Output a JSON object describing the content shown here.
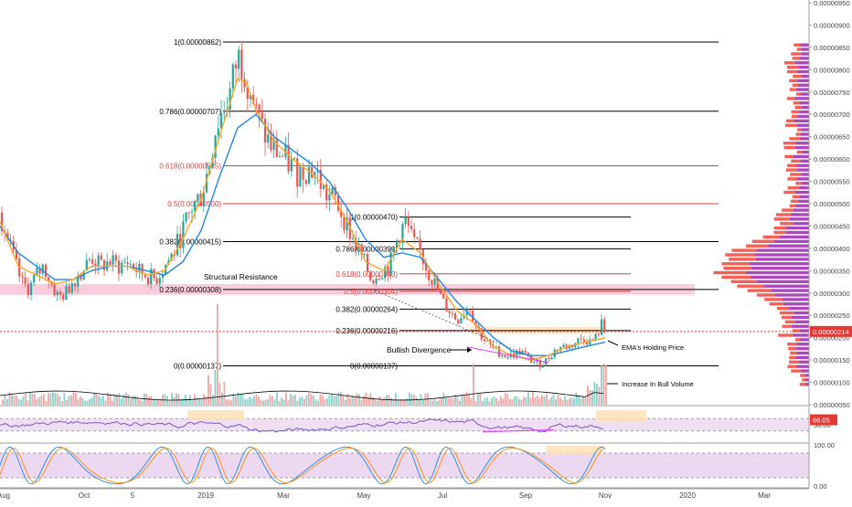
{
  "chart_data": [
    {
      "type": "candlestick",
      "pane": "price",
      "x_ticks": [
        "Aug",
        "Oct",
        "5",
        "2019",
        "Mar",
        "May",
        "Jul",
        "Sep",
        "Nov",
        "2020",
        "Mar"
      ],
      "y_ticks": [
        "0.00000950",
        "0.00000900",
        "0.00000850",
        "0.00000800",
        "0.00000750",
        "0.00000700",
        "0.00000650",
        "0.00000600",
        "0.00000550",
        "0.00000500",
        "0.00000450",
        "0.00000400",
        "0.00000350",
        "0.00000300",
        "0.00000250",
        "0.00000200",
        "0.00000150",
        "0.00000100",
        "0.00000050"
      ],
      "ylim": [
        3e-07,
        9.65e-06
      ],
      "last_price_label": "0.00000214",
      "last_price": 2.14e-06,
      "fib_levels_major": [
        {
          "label": "1(0.00000862)",
          "value": 8.62e-06,
          "color": "#000000"
        },
        {
          "label": "0.786(0.00000707)",
          "value": 7.07e-06,
          "color": "#000000"
        },
        {
          "label": "0.618(0.00000585)",
          "value": 5.85e-06,
          "color": "#e53935"
        },
        {
          "label": "0.5(0.00000500)",
          "value": 5e-06,
          "color": "#e53935"
        },
        {
          "label": "0.382(0.00000415)",
          "value": 4.15e-06,
          "color": "#000000"
        },
        {
          "label": "0.236(0.00000308)",
          "value": 3.08e-06,
          "color": "#000000"
        },
        {
          "label": "0(0.00000137)",
          "value": 1.37e-06,
          "color": "#000000"
        }
      ],
      "fib_levels_minor": [
        {
          "label": "1(0.00000470)",
          "value": 4.7e-06,
          "color": "#000000"
        },
        {
          "label": "0.786(0.00000399)",
          "value": 3.99e-06,
          "color": "#000000"
        },
        {
          "label": "0.618(0.00000343)",
          "value": 3.43e-06,
          "color": "#e53935"
        },
        {
          "label": "0.5(0.00000304)",
          "value": 3.04e-06,
          "color": "#e53935"
        },
        {
          "label": "0.382(0.00000264)",
          "value": 2.64e-06,
          "color": "#000000"
        },
        {
          "label": "0.236(0.00000216)",
          "value": 2.16e-06,
          "color": "#000000"
        },
        {
          "label": "0(0.00000137)",
          "value": 1.37e-06,
          "color": "#000000"
        }
      ],
      "annotations": [
        {
          "text": "Structural Resistance"
        },
        {
          "text": "Bullish Divergence"
        },
        {
          "text": "EMA's Holding Price"
        },
        {
          "text": "Increase In Bull Volume"
        }
      ],
      "price_path": [
        [
          0,
          4.8e-06
        ],
        [
          8,
          4.2e-06
        ],
        [
          16,
          3.7e-06
        ],
        [
          24,
          3.2e-06
        ],
        [
          32,
          3.1e-06
        ],
        [
          40,
          3.4e-06
        ],
        [
          48,
          3.6e-06
        ],
        [
          56,
          3.2e-06
        ],
        [
          64,
          2.9e-06
        ],
        [
          72,
          3e-06
        ],
        [
          80,
          3.3e-06
        ],
        [
          90,
          3.5e-06
        ],
        [
          100,
          3.8e-06
        ],
        [
          110,
          3.6e-06
        ],
        [
          120,
          3.7e-06
        ],
        [
          130,
          3.6e-06
        ],
        [
          140,
          3.7e-06
        ],
        [
          150,
          3.5e-06
        ],
        [
          160,
          3.4e-06
        ],
        [
          170,
          3.3e-06
        ],
        [
          180,
          3.6e-06
        ],
        [
          190,
          3.9e-06
        ],
        [
          200,
          4.4e-06
        ],
        [
          210,
          4.9e-06
        ],
        [
          220,
          5.2e-06
        ],
        [
          228,
          5.8e-06
        ],
        [
          236,
          6.7e-06
        ],
        [
          244,
          7.1e-06
        ],
        [
          252,
          7.5e-06
        ],
        [
          258,
          8.1e-06
        ],
        [
          262,
          8.3e-06
        ],
        [
          268,
          8e-06
        ],
        [
          274,
          7.6e-06
        ],
        [
          280,
          7e-06
        ],
        [
          288,
          6.6e-06
        ],
        [
          296,
          6.3e-06
        ],
        [
          306,
          6.1e-06
        ],
        [
          316,
          5.9e-06
        ],
        [
          326,
          5.7e-06
        ],
        [
          336,
          5.8e-06
        ],
        [
          346,
          5.7e-06
        ],
        [
          356,
          5.2e-06
        ],
        [
          366,
          5.1e-06
        ],
        [
          376,
          4.7e-06
        ],
        [
          386,
          4.2e-06
        ],
        [
          396,
          3.8e-06
        ],
        [
          406,
          3.3e-06
        ],
        [
          416,
          3.5e-06
        ],
        [
          426,
          3.6e-06
        ],
        [
          436,
          4.3e-06
        ],
        [
          444,
          4.6e-06
        ],
        [
          452,
          4.1e-06
        ],
        [
          460,
          3.9e-06
        ],
        [
          468,
          3.5e-06
        ],
        [
          476,
          3.2e-06
        ],
        [
          484,
          2.8e-06
        ],
        [
          492,
          2.6e-06
        ],
        [
          500,
          2.4e-06
        ],
        [
          508,
          2.6e-06
        ],
        [
          514,
          2.7e-06
        ],
        [
          520,
          2.3e-06
        ],
        [
          528,
          2e-06
        ],
        [
          536,
          1.8e-06
        ],
        [
          544,
          1.7e-06
        ],
        [
          552,
          1.6e-06
        ],
        [
          560,
          1.6e-06
        ],
        [
          570,
          1.7e-06
        ],
        [
          580,
          1.5e-06
        ],
        [
          590,
          1.4e-06
        ],
        [
          598,
          1.5e-06
        ],
        [
          606,
          1.7e-06
        ],
        [
          614,
          1.8e-06
        ],
        [
          622,
          1.8e-06
        ],
        [
          630,
          1.9e-06
        ],
        [
          638,
          2e-06
        ],
        [
          646,
          1.9e-06
        ],
        [
          652,
          2e-06
        ],
        [
          658,
          2.3e-06
        ],
        [
          662,
          2.1e-06
        ]
      ],
      "ema_fast_path": [
        [
          0,
          4.6e-06
        ],
        [
          20,
          3.6e-06
        ],
        [
          40,
          3.4e-06
        ],
        [
          60,
          3.2e-06
        ],
        [
          80,
          3.3e-06
        ],
        [
          100,
          3.6e-06
        ],
        [
          120,
          3.6e-06
        ],
        [
          140,
          3.6e-06
        ],
        [
          160,
          3.4e-06
        ],
        [
          180,
          3.5e-06
        ],
        [
          200,
          4.2e-06
        ],
        [
          220,
          5.1e-06
        ],
        [
          240,
          6.5e-06
        ],
        [
          260,
          7.8e-06
        ],
        [
          270,
          7.7e-06
        ],
        [
          280,
          7.1e-06
        ],
        [
          300,
          6.4e-06
        ],
        [
          320,
          6e-06
        ],
        [
          340,
          5.7e-06
        ],
        [
          360,
          5.3e-06
        ],
        [
          380,
          4.6e-06
        ],
        [
          400,
          3.7e-06
        ],
        [
          420,
          3.5e-06
        ],
        [
          440,
          4.2e-06
        ],
        [
          460,
          3.9e-06
        ],
        [
          480,
          3.2e-06
        ],
        [
          500,
          2.6e-06
        ],
        [
          520,
          2.3e-06
        ],
        [
          540,
          1.8e-06
        ],
        [
          560,
          1.6e-06
        ],
        [
          580,
          1.5e-06
        ],
        [
          600,
          1.6e-06
        ],
        [
          620,
          1.8e-06
        ],
        [
          640,
          1.9e-06
        ],
        [
          662,
          2e-06
        ]
      ],
      "ema_slow_path": [
        [
          0,
          4.5e-06
        ],
        [
          20,
          3.9e-06
        ],
        [
          40,
          3.6e-06
        ],
        [
          60,
          3.3e-06
        ],
        [
          80,
          3.3e-06
        ],
        [
          100,
          3.5e-06
        ],
        [
          120,
          3.6e-06
        ],
        [
          140,
          3.6e-06
        ],
        [
          160,
          3.5e-06
        ],
        [
          180,
          3.4e-06
        ],
        [
          200,
          3.7e-06
        ],
        [
          220,
          4.4e-06
        ],
        [
          240,
          5.6e-06
        ],
        [
          260,
          6.7e-06
        ],
        [
          280,
          7e-06
        ],
        [
          300,
          6.5e-06
        ],
        [
          320,
          6.2e-06
        ],
        [
          340,
          5.9e-06
        ],
        [
          360,
          5.5e-06
        ],
        [
          380,
          4.9e-06
        ],
        [
          400,
          4.2e-06
        ],
        [
          420,
          3.8e-06
        ],
        [
          440,
          3.9e-06
        ],
        [
          460,
          3.8e-06
        ],
        [
          480,
          3.3e-06
        ],
        [
          500,
          2.8e-06
        ],
        [
          520,
          2.4e-06
        ],
        [
          540,
          2e-06
        ],
        [
          560,
          1.7e-06
        ],
        [
          580,
          1.6e-06
        ],
        [
          600,
          1.6e-06
        ],
        [
          620,
          1.7e-06
        ],
        [
          640,
          1.8e-06
        ],
        [
          662,
          1.9e-06
        ]
      ]
    },
    {
      "type": "bar",
      "pane": "volume",
      "name": "volume"
    },
    {
      "type": "line",
      "pane": "rsi",
      "last_value_label": "66.05",
      "last_value": 66.05,
      "y_ticks": [
        "50.00"
      ],
      "bands": [
        70,
        30
      ]
    },
    {
      "type": "line",
      "pane": "stoch_rsi",
      "y_ticks": [
        "100.00",
        "0.00"
      ],
      "bands": [
        80,
        20
      ]
    }
  ],
  "colors": {
    "up": "#26a69a",
    "down": "#ef5350",
    "ema_fast": "#f9a825",
    "ema_slow": "#1e88e5",
    "rsi_line": "#7e57c2",
    "fib_red": "#e53935",
    "resistance_zone": "#f8bbd0",
    "profile_purple": "#9c27b0",
    "profile_red": "#f44336",
    "last_price_tag": "#e53935",
    "panel_fill": "#e1bee7"
  }
}
